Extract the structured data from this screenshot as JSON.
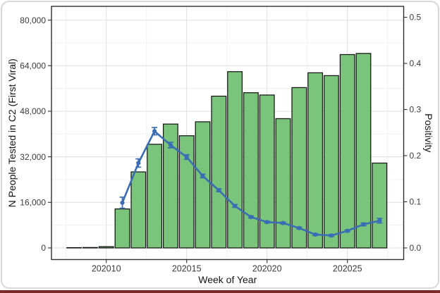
{
  "figure": {
    "left_axis": {
      "title": "N People Tested in C2 (First Viral)",
      "ticks": [
        "0",
        "16,000",
        "32,000",
        "48,000",
        "64,000",
        "80,000"
      ],
      "tick_values": [
        0,
        16000,
        32000,
        48000,
        64000,
        80000
      ]
    },
    "right_axis": {
      "title": "Positivity",
      "ticks": [
        "0.0",
        "0.1",
        "0.2",
        "0.3",
        "0.4",
        "0.5"
      ],
      "tick_values": [
        0,
        0.1,
        0.2,
        0.3,
        0.4,
        0.5
      ]
    },
    "x_axis": {
      "title": "Week of Year",
      "ticks": [
        "202010",
        "202015",
        "202020",
        "202025"
      ],
      "tick_values": [
        202010,
        202015,
        202020,
        202025
      ]
    },
    "colors": {
      "bar_fill": "#7bc47b",
      "bar_stroke": "#141414",
      "line": "#3a6db4",
      "grid_major": "#e4e4e4",
      "grid_minor": "#f1f1f1",
      "panel_border": "#2e2e2e",
      "tick_text": "#3a3a3a",
      "title_text": "#141414",
      "card_border": "#d8d8d8",
      "bottom_rule": "#7a2828"
    }
  },
  "chart_data": {
    "type": "bar+line",
    "title": "",
    "xlabel": "Week of Year",
    "ylabel_left": "N People Tested in C2 (First Viral)",
    "ylabel_right": "Positivity",
    "xlim": [
      202007,
      202028
    ],
    "ylim_left": [
      0,
      80000
    ],
    "ylim_right": [
      0,
      0.5
    ],
    "grid": true,
    "legend": "none",
    "x": [
      202008,
      202009,
      202010,
      202011,
      202012,
      202013,
      202014,
      202015,
      202016,
      202017,
      202018,
      202019,
      202020,
      202021,
      202022,
      202023,
      202024,
      202025,
      202026,
      202027
    ],
    "series": [
      {
        "name": "N People Tested in C2 (First Viral)",
        "type": "bar",
        "axis": "left",
        "values": [
          100,
          150,
          450,
          13700,
          26700,
          36400,
          43500,
          39400,
          44300,
          53300,
          61900,
          54500,
          53700,
          45400,
          56300,
          61500,
          60500,
          67900,
          68300,
          29800
        ]
      },
      {
        "name": "Positivity",
        "type": "line",
        "axis": "right",
        "x": [
          202011,
          202012,
          202013,
          202014,
          202015,
          202016,
          202017,
          202018,
          202019,
          202020,
          202021,
          202022,
          202023,
          202024,
          202025,
          202026,
          202027
        ],
        "values": [
          0.098,
          0.184,
          0.253,
          0.223,
          0.197,
          0.156,
          0.125,
          0.091,
          0.067,
          0.056,
          0.054,
          0.043,
          0.029,
          0.027,
          0.037,
          0.051,
          0.059
        ],
        "errors": [
          0.012,
          0.009,
          0.008,
          0.006,
          0.005,
          0.004,
          0.003,
          0.003,
          0.002,
          0.002,
          0.002,
          0.002,
          0.002,
          0.002,
          0.002,
          0.003,
          0.005
        ]
      }
    ]
  }
}
